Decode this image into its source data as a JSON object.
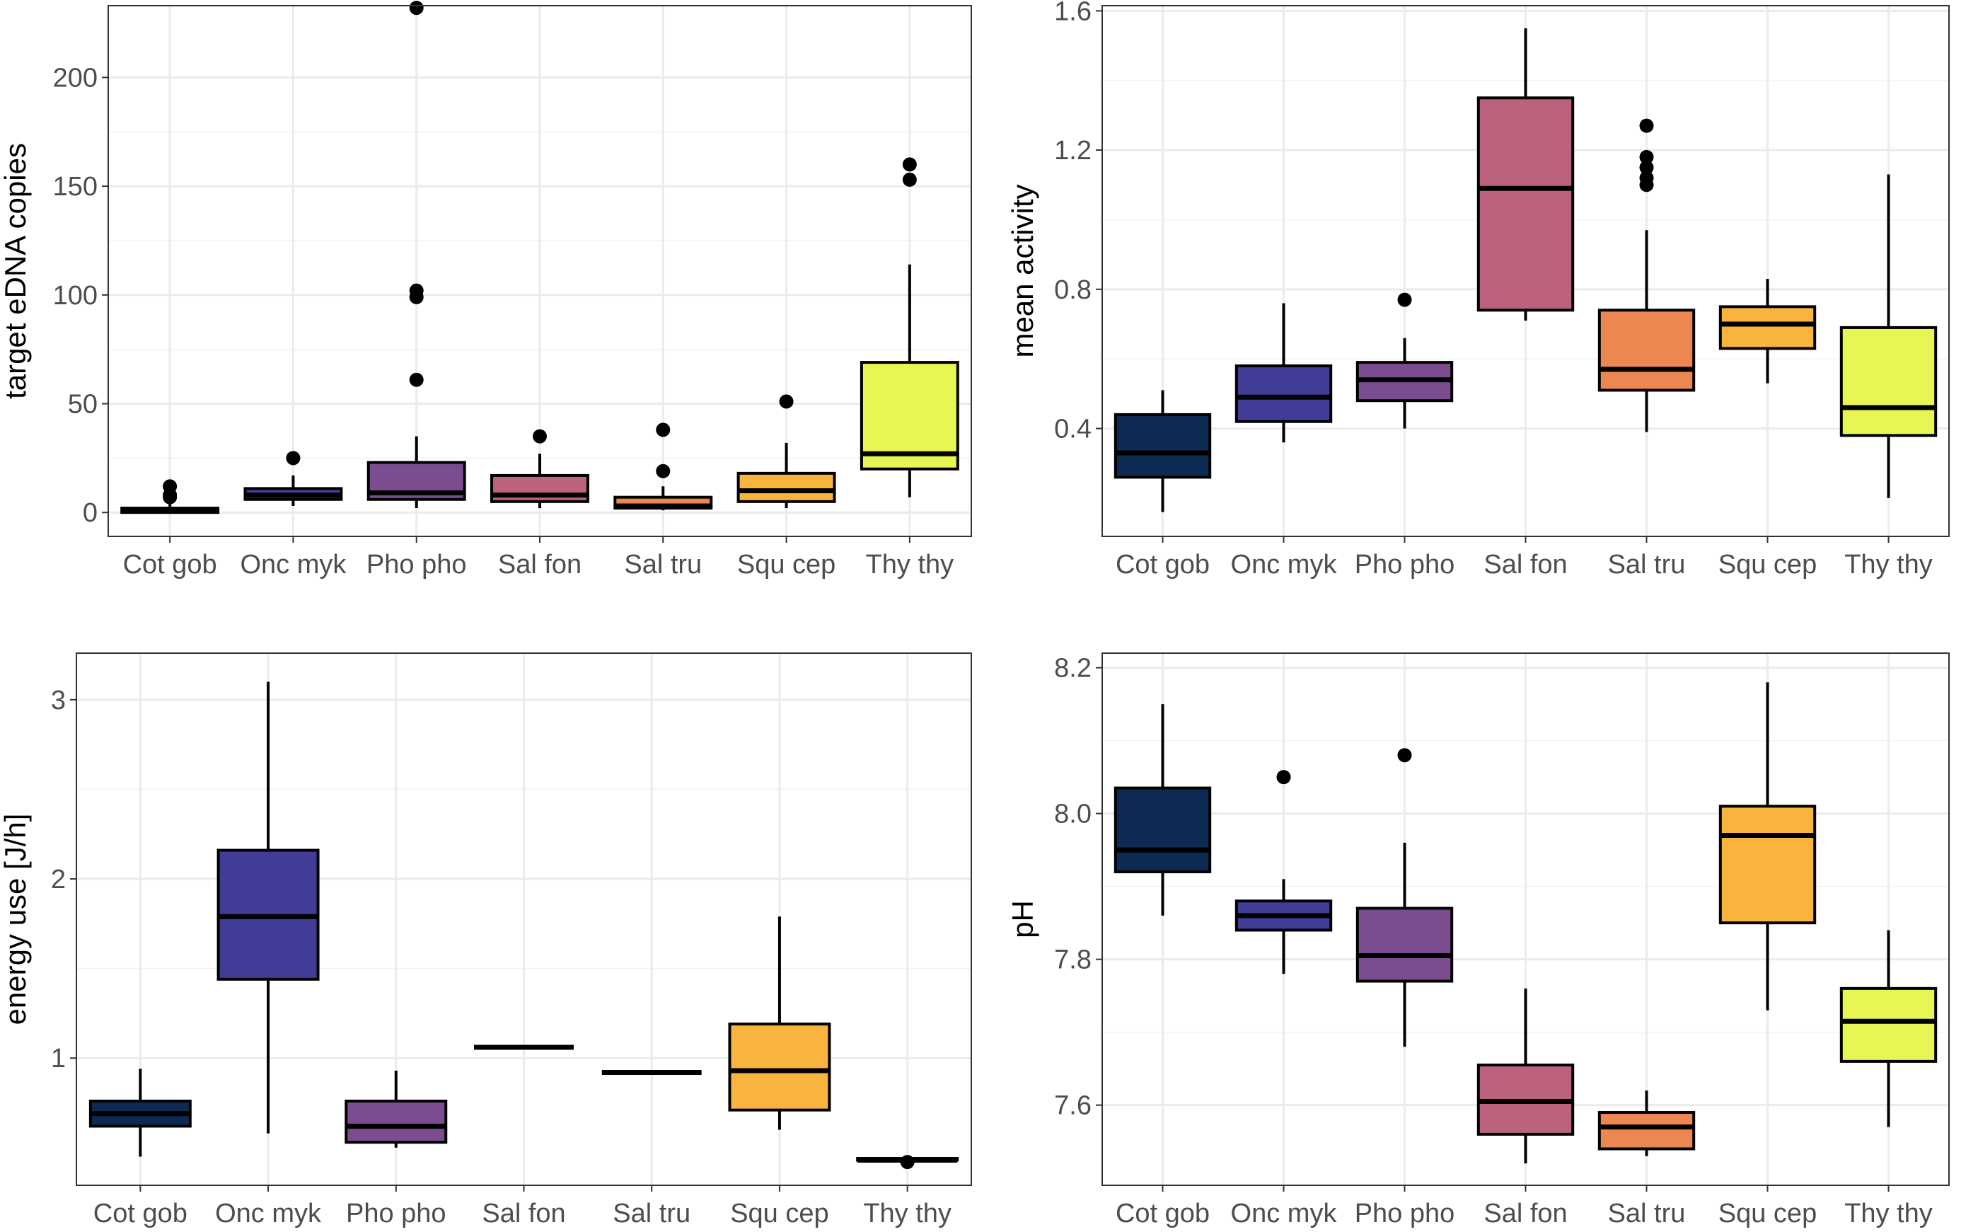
{
  "chart_data": [
    {
      "type": "boxplot",
      "ylabel": "target eDNA copies",
      "xlabel": "",
      "categories": [
        "Cot gob",
        "Onc myk",
        "Pho pho",
        "Sal fon",
        "Sal tru",
        "Squ cep",
        "Thy thy"
      ],
      "ylim": [
        -11,
        233
      ],
      "yticks": [
        0,
        50,
        100,
        150,
        200
      ],
      "ytick_labels": [
        "0",
        "50",
        "100",
        "150",
        "200"
      ],
      "grid": true,
      "boxes": [
        {
          "category": "Cot gob",
          "color": "#0d2b52",
          "whisker_low": 0,
          "q1": 0,
          "median": 1,
          "q3": 2,
          "whisker_high": 4,
          "outliers": [
            7,
            8,
            12
          ]
        },
        {
          "category": "Onc myk",
          "color": "#413c95",
          "whisker_low": 3,
          "q1": 6,
          "median": 8,
          "q3": 11,
          "whisker_high": 17,
          "outliers": [
            25
          ]
        },
        {
          "category": "Pho pho",
          "color": "#7b4c8f",
          "whisker_low": 2,
          "q1": 6,
          "median": 9,
          "q3": 23,
          "whisker_high": 35,
          "outliers": [
            61,
            99,
            102,
            232
          ]
        },
        {
          "category": "Sal fon",
          "color": "#bd627c",
          "whisker_low": 2,
          "q1": 5,
          "median": 8,
          "q3": 17,
          "whisker_high": 27,
          "outliers": [
            35
          ]
        },
        {
          "category": "Sal tru",
          "color": "#ed8752",
          "whisker_low": 1,
          "q1": 2,
          "median": 3,
          "q3": 7,
          "whisker_high": 12,
          "outliers": [
            19,
            38
          ]
        },
        {
          "category": "Squ cep",
          "color": "#f9b43d",
          "whisker_low": 2,
          "q1": 5,
          "median": 10,
          "q3": 18,
          "whisker_high": 32,
          "outliers": [
            51
          ]
        },
        {
          "category": "Thy thy",
          "color": "#e8f653",
          "whisker_low": 7,
          "q1": 20,
          "median": 27,
          "q3": 69,
          "whisker_high": 114,
          "outliers": [
            153,
            160
          ]
        }
      ]
    },
    {
      "type": "boxplot",
      "ylabel": "mean activity",
      "xlabel": "",
      "categories": [
        "Cot gob",
        "Onc myk",
        "Pho pho",
        "Sal fon",
        "Sal tru",
        "Squ cep",
        "Thy thy"
      ],
      "ylim": [
        0.09,
        1.615
      ],
      "yticks": [
        0.4,
        0.8,
        1.2,
        1.6
      ],
      "ytick_labels": [
        "0.4",
        "0.8",
        "1.2",
        "1.6"
      ],
      "grid": true,
      "boxes": [
        {
          "category": "Cot gob",
          "color": "#0d2b52",
          "whisker_low": 0.16,
          "q1": 0.26,
          "median": 0.33,
          "q3": 0.44,
          "whisker_high": 0.51,
          "outliers": []
        },
        {
          "category": "Onc myk",
          "color": "#413c95",
          "whisker_low": 0.36,
          "q1": 0.42,
          "median": 0.49,
          "q3": 0.58,
          "whisker_high": 0.76,
          "outliers": []
        },
        {
          "category": "Pho pho",
          "color": "#7b4c8f",
          "whisker_low": 0.4,
          "q1": 0.48,
          "median": 0.54,
          "q3": 0.59,
          "whisker_high": 0.66,
          "outliers": [
            0.77
          ]
        },
        {
          "category": "Sal fon",
          "color": "#bd627c",
          "whisker_low": 0.71,
          "q1": 0.74,
          "median": 1.09,
          "q3": 1.35,
          "whisker_high": 1.55,
          "outliers": []
        },
        {
          "category": "Sal tru",
          "color": "#ed8752",
          "whisker_low": 0.39,
          "q1": 0.51,
          "median": 0.57,
          "q3": 0.74,
          "whisker_high": 0.97,
          "outliers": [
            1.1,
            1.12,
            1.15,
            1.18,
            1.27
          ]
        },
        {
          "category": "Squ cep",
          "color": "#f9b43d",
          "whisker_low": 0.53,
          "q1": 0.63,
          "median": 0.7,
          "q3": 0.75,
          "whisker_high": 0.83,
          "outliers": []
        },
        {
          "category": "Thy thy",
          "color": "#e8f653",
          "whisker_low": 0.2,
          "q1": 0.38,
          "median": 0.46,
          "q3": 0.69,
          "whisker_high": 1.13,
          "outliers": []
        }
      ]
    },
    {
      "type": "boxplot",
      "ylabel": "energy use [J/h]",
      "xlabel": "",
      "categories": [
        "Cot gob",
        "Onc myk",
        "Pho pho",
        "Sal fon",
        "Sal tru",
        "Squ cep",
        "Thy thy"
      ],
      "ylim": [
        0.29,
        3.26
      ],
      "yticks": [
        1,
        2,
        3
      ],
      "ytick_labels": [
        "1",
        "2",
        "3"
      ],
      "grid": true,
      "boxes": [
        {
          "category": "Cot gob",
          "color": "#0d2b52",
          "whisker_low": 0.45,
          "q1": 0.62,
          "median": 0.69,
          "q3": 0.76,
          "whisker_high": 0.94,
          "outliers": []
        },
        {
          "category": "Onc myk",
          "color": "#413c95",
          "whisker_low": 0.58,
          "q1": 1.44,
          "median": 1.79,
          "q3": 2.16,
          "whisker_high": 3.1,
          "outliers": []
        },
        {
          "category": "Pho pho",
          "color": "#7b4c8f",
          "whisker_low": 0.5,
          "q1": 0.53,
          "median": 0.62,
          "q3": 0.76,
          "whisker_high": 0.93,
          "outliers": []
        },
        {
          "category": "Sal fon",
          "color": "#bd627c",
          "whisker_low": 1.06,
          "q1": 1.06,
          "median": 1.06,
          "q3": 1.06,
          "whisker_high": 1.06,
          "outliers": []
        },
        {
          "category": "Sal tru",
          "color": "#ed8752",
          "whisker_low": 0.92,
          "q1": 0.92,
          "median": 0.92,
          "q3": 0.92,
          "whisker_high": 0.92,
          "outliers": []
        },
        {
          "category": "Squ cep",
          "color": "#f9b43d",
          "whisker_low": 0.6,
          "q1": 0.71,
          "median": 0.93,
          "q3": 1.19,
          "whisker_high": 1.79,
          "outliers": []
        },
        {
          "category": "Thy thy",
          "color": "#e8f653",
          "whisker_low": 0.43,
          "q1": 0.43,
          "median": 0.43,
          "q3": 0.44,
          "whisker_high": 0.44,
          "outliers": [
            0.42
          ]
        }
      ]
    },
    {
      "type": "boxplot",
      "ylabel": "pH",
      "xlabel": "",
      "categories": [
        "Cot gob",
        "Onc myk",
        "Pho pho",
        "Sal fon",
        "Sal tru",
        "Squ cep",
        "Thy thy"
      ],
      "ylim": [
        7.49,
        8.22
      ],
      "yticks": [
        7.6,
        7.8,
        8.0,
        8.2
      ],
      "ytick_labels": [
        "7.6",
        "7.8",
        "8.0",
        "8.2"
      ],
      "grid": true,
      "boxes": [
        {
          "category": "Cot gob",
          "color": "#0d2b52",
          "whisker_low": 7.86,
          "q1": 7.92,
          "median": 7.95,
          "q3": 8.035,
          "whisker_high": 8.15,
          "outliers": []
        },
        {
          "category": "Onc myk",
          "color": "#413c95",
          "whisker_low": 7.78,
          "q1": 7.84,
          "median": 7.86,
          "q3": 7.88,
          "whisker_high": 7.91,
          "outliers": [
            8.05
          ]
        },
        {
          "category": "Pho pho",
          "color": "#7b4c8f",
          "whisker_low": 7.68,
          "q1": 7.77,
          "median": 7.805,
          "q3": 7.87,
          "whisker_high": 7.96,
          "outliers": [
            8.08
          ]
        },
        {
          "category": "Sal fon",
          "color": "#bd627c",
          "whisker_low": 7.52,
          "q1": 7.56,
          "median": 7.605,
          "q3": 7.655,
          "whisker_high": 7.76,
          "outliers": []
        },
        {
          "category": "Sal tru",
          "color": "#ed8752",
          "whisker_low": 7.53,
          "q1": 7.54,
          "median": 7.57,
          "q3": 7.59,
          "whisker_high": 7.62,
          "outliers": []
        },
        {
          "category": "Squ cep",
          "color": "#f9b43d",
          "whisker_low": 7.73,
          "q1": 7.85,
          "median": 7.97,
          "q3": 8.01,
          "whisker_high": 8.18,
          "outliers": []
        },
        {
          "category": "Thy thy",
          "color": "#e8f653",
          "whisker_low": 7.57,
          "q1": 7.66,
          "median": 7.715,
          "q3": 7.76,
          "whisker_high": 7.84,
          "outliers": []
        }
      ]
    }
  ]
}
